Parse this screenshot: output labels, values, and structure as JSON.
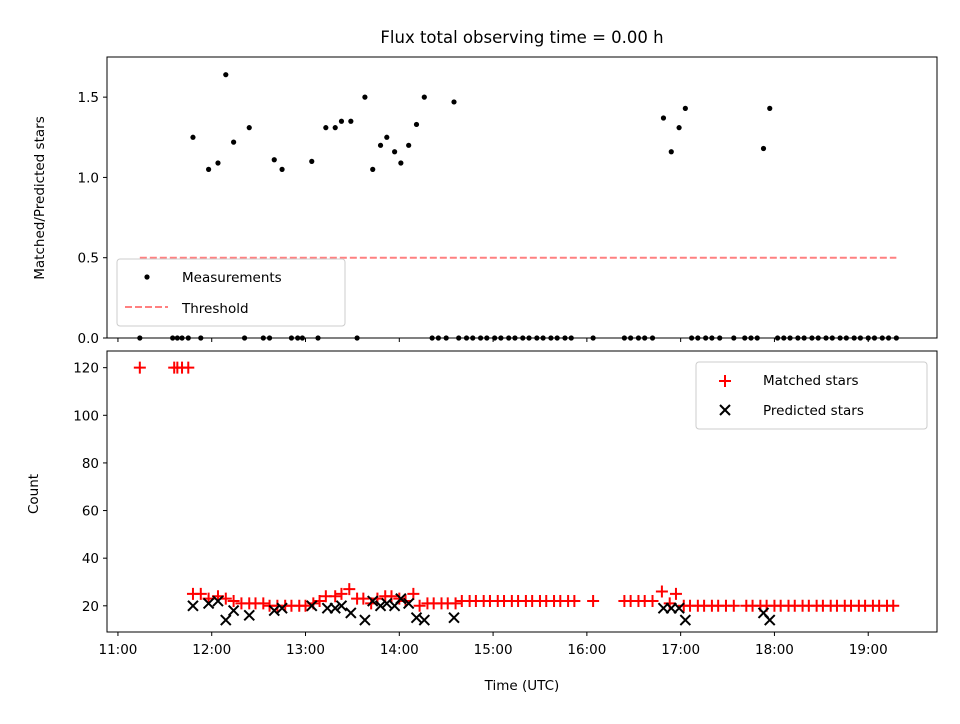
{
  "chart_data": [
    {
      "type": "scatter",
      "title": "Flux total observing time = 0.00 h",
      "ylabel": "Matched/Predicted stars",
      "xlabel": "",
      "xlim": [
        "10:53",
        "19:44"
      ],
      "ylim": [
        0,
        1.75
      ],
      "yticks": [
        0.0,
        0.5,
        1.0,
        1.5
      ],
      "ytick_labels": [
        "0.0",
        "0.5",
        "1.0",
        "1.5"
      ],
      "grid": false,
      "legend_position": "lower-left",
      "series": [
        {
          "name": "Measurements",
          "marker": "dot",
          "color": "#000000",
          "points": [
            [
              "11:48",
              1.25
            ],
            [
              "11:58",
              1.05
            ],
            [
              "12:04",
              1.09
            ],
            [
              "12:09",
              1.64
            ],
            [
              "12:14",
              1.22
            ],
            [
              "12:24",
              1.31
            ],
            [
              "12:40",
              1.11
            ],
            [
              "12:45",
              1.05
            ],
            [
              "13:04",
              1.1
            ],
            [
              "13:13",
              1.31
            ],
            [
              "13:19",
              1.31
            ],
            [
              "13:23",
              1.35
            ],
            [
              "13:29",
              1.35
            ],
            [
              "13:38",
              1.5
            ],
            [
              "13:43",
              1.05
            ],
            [
              "13:48",
              1.2
            ],
            [
              "13:52",
              1.25
            ],
            [
              "13:57",
              1.16
            ],
            [
              "14:01",
              1.09
            ],
            [
              "14:06",
              1.2
            ],
            [
              "14:11",
              1.33
            ],
            [
              "14:16",
              1.5
            ],
            [
              "14:35",
              1.47
            ],
            [
              "16:49",
              1.37
            ],
            [
              "16:54",
              1.16
            ],
            [
              "16:59",
              1.31
            ],
            [
              "17:03",
              1.43
            ],
            [
              "17:53",
              1.18
            ],
            [
              "17:57",
              1.43
            ],
            [
              "11:14",
              0
            ],
            [
              "11:35",
              0
            ],
            [
              "11:38",
              0
            ],
            [
              "11:41",
              0
            ],
            [
              "11:45",
              0
            ],
            [
              "11:53",
              0
            ],
            [
              "12:21",
              0
            ],
            [
              "12:33",
              0
            ],
            [
              "12:37",
              0
            ],
            [
              "12:51",
              0
            ],
            [
              "12:55",
              0
            ],
            [
              "12:58",
              0
            ],
            [
              "13:08",
              0
            ],
            [
              "13:33",
              0
            ],
            [
              "14:21",
              0
            ],
            [
              "14:25",
              0
            ],
            [
              "14:30",
              0
            ],
            [
              "14:38",
              0
            ],
            [
              "14:43",
              0
            ],
            [
              "14:47",
              0
            ],
            [
              "14:52",
              0
            ],
            [
              "14:56",
              0
            ],
            [
              "15:01",
              0
            ],
            [
              "15:05",
              0
            ],
            [
              "15:10",
              0
            ],
            [
              "15:14",
              0
            ],
            [
              "15:19",
              0
            ],
            [
              "15:23",
              0
            ],
            [
              "15:28",
              0
            ],
            [
              "15:32",
              0
            ],
            [
              "15:37",
              0
            ],
            [
              "15:41",
              0
            ],
            [
              "15:46",
              0
            ],
            [
              "15:50",
              0
            ],
            [
              "16:04",
              0
            ],
            [
              "16:24",
              0
            ],
            [
              "16:28",
              0
            ],
            [
              "16:33",
              0
            ],
            [
              "16:37",
              0
            ],
            [
              "16:42",
              0
            ],
            [
              "17:07",
              0
            ],
            [
              "17:11",
              0
            ],
            [
              "17:16",
              0
            ],
            [
              "17:20",
              0
            ],
            [
              "17:25",
              0
            ],
            [
              "17:34",
              0
            ],
            [
              "17:41",
              0
            ],
            [
              "17:45",
              0
            ],
            [
              "17:49",
              0
            ],
            [
              "18:02",
              0
            ],
            [
              "18:06",
              0
            ],
            [
              "18:10",
              0
            ],
            [
              "18:15",
              0
            ],
            [
              "18:19",
              0
            ],
            [
              "18:24",
              0
            ],
            [
              "18:28",
              0
            ],
            [
              "18:33",
              0
            ],
            [
              "18:37",
              0
            ],
            [
              "18:42",
              0
            ],
            [
              "18:46",
              0
            ],
            [
              "18:51",
              0
            ],
            [
              "18:55",
              0
            ],
            [
              "19:00",
              0
            ],
            [
              "19:04",
              0
            ],
            [
              "19:09",
              0
            ],
            [
              "19:13",
              0
            ],
            [
              "19:18",
              0
            ]
          ]
        },
        {
          "name": "Threshold",
          "style": "dashed-line",
          "color": "#ff8080",
          "points": [
            [
              "11:14",
              0.5
            ],
            [
              "19:18",
              0.5
            ]
          ]
        }
      ]
    },
    {
      "type": "scatter",
      "title": "",
      "ylabel": "Count",
      "xlabel": "Time (UTC)",
      "xlim": [
        "10:53",
        "19:44"
      ],
      "ylim": [
        9,
        127
      ],
      "yticks": [
        20,
        40,
        60,
        80,
        100,
        120
      ],
      "ytick_labels": [
        "20",
        "40",
        "60",
        "80",
        "100",
        "120"
      ],
      "xticks": [
        "11:00",
        "12:00",
        "13:00",
        "14:00",
        "15:00",
        "16:00",
        "17:00",
        "18:00",
        "19:00"
      ],
      "grid": false,
      "legend_position": "upper-right",
      "series": [
        {
          "name": "Matched stars",
          "marker": "plus",
          "color": "#ff0000",
          "points": [
            [
              "11:14",
              120
            ],
            [
              "11:36",
              120
            ],
            [
              "11:38",
              120
            ],
            [
              "11:41",
              120
            ],
            [
              "11:45",
              120
            ],
            [
              "11:48",
              25
            ],
            [
              "11:53",
              25
            ],
            [
              "11:58",
              23
            ],
            [
              "12:04",
              24
            ],
            [
              "12:09",
              23
            ],
            [
              "12:14",
              22
            ],
            [
              "12:19",
              21
            ],
            [
              "12:24",
              21
            ],
            [
              "12:28",
              21
            ],
            [
              "12:33",
              21
            ],
            [
              "12:37",
              20
            ],
            [
              "12:42",
              20
            ],
            [
              "12:47",
              20
            ],
            [
              "12:51",
              20
            ],
            [
              "12:56",
              20
            ],
            [
              "13:00",
              20
            ],
            [
              "13:05",
              21
            ],
            [
              "13:09",
              22
            ],
            [
              "13:13",
              24
            ],
            [
              "13:19",
              24
            ],
            [
              "13:23",
              25
            ],
            [
              "13:28",
              27
            ],
            [
              "13:33",
              23
            ],
            [
              "13:37",
              23
            ],
            [
              "13:42",
              21
            ],
            [
              "13:46",
              23
            ],
            [
              "13:51",
              24
            ],
            [
              "13:55",
              24
            ],
            [
              "14:00",
              23
            ],
            [
              "14:04",
              22
            ],
            [
              "14:09",
              25
            ],
            [
              "14:13",
              20
            ],
            [
              "14:18",
              21
            ],
            [
              "14:22",
              21
            ],
            [
              "14:27",
              21
            ],
            [
              "14:31",
              21
            ],
            [
              "14:36",
              21
            ],
            [
              "14:40",
              22
            ],
            [
              "14:45",
              22
            ],
            [
              "14:49",
              22
            ],
            [
              "14:54",
              22
            ],
            [
              "14:58",
              22
            ],
            [
              "15:03",
              22
            ],
            [
              "15:07",
              22
            ],
            [
              "15:12",
              22
            ],
            [
              "15:16",
              22
            ],
            [
              "15:21",
              22
            ],
            [
              "15:25",
              22
            ],
            [
              "15:30",
              22
            ],
            [
              "15:34",
              22
            ],
            [
              "15:39",
              22
            ],
            [
              "15:43",
              22
            ],
            [
              "15:48",
              22
            ],
            [
              "15:52",
              22
            ],
            [
              "16:04",
              22
            ],
            [
              "16:24",
              22
            ],
            [
              "16:28",
              22
            ],
            [
              "16:33",
              22
            ],
            [
              "16:37",
              22
            ],
            [
              "16:42",
              22
            ],
            [
              "16:48",
              26
            ],
            [
              "16:53",
              21
            ],
            [
              "16:57",
              25
            ],
            [
              "17:02",
              20
            ],
            [
              "17:06",
              20
            ],
            [
              "17:11",
              20
            ],
            [
              "17:15",
              20
            ],
            [
              "17:20",
              20
            ],
            [
              "17:24",
              20
            ],
            [
              "17:29",
              20
            ],
            [
              "17:34",
              20
            ],
            [
              "17:42",
              20
            ],
            [
              "17:46",
              20
            ],
            [
              "17:51",
              20
            ],
            [
              "17:55",
              20
            ],
            [
              "18:00",
              20
            ],
            [
              "18:04",
              20
            ],
            [
              "18:09",
              20
            ],
            [
              "18:13",
              20
            ],
            [
              "18:18",
              20
            ],
            [
              "18:22",
              20
            ],
            [
              "18:27",
              20
            ],
            [
              "18:31",
              20
            ],
            [
              "18:36",
              20
            ],
            [
              "18:40",
              20
            ],
            [
              "18:45",
              20
            ],
            [
              "18:49",
              20
            ],
            [
              "18:54",
              20
            ],
            [
              "18:58",
              20
            ],
            [
              "19:03",
              20
            ],
            [
              "19:07",
              20
            ],
            [
              "19:12",
              20
            ],
            [
              "19:16",
              20
            ]
          ]
        },
        {
          "name": "Predicted stars",
          "marker": "x",
          "color": "#000000",
          "points": [
            [
              "11:48",
              20
            ],
            [
              "11:58",
              21
            ],
            [
              "12:04",
              22
            ],
            [
              "12:09",
              14
            ],
            [
              "12:14",
              18
            ],
            [
              "12:24",
              16
            ],
            [
              "12:40",
              18
            ],
            [
              "12:45",
              19
            ],
            [
              "13:04",
              20
            ],
            [
              "13:14",
              19
            ],
            [
              "13:19",
              19
            ],
            [
              "13:23",
              20
            ],
            [
              "13:29",
              17
            ],
            [
              "13:38",
              14
            ],
            [
              "13:43",
              22
            ],
            [
              "13:48",
              20
            ],
            [
              "13:52",
              21
            ],
            [
              "13:57",
              20
            ],
            [
              "14:01",
              23
            ],
            [
              "14:06",
              21
            ],
            [
              "14:11",
              15
            ],
            [
              "14:16",
              14
            ],
            [
              "14:35",
              15
            ],
            [
              "16:49",
              19
            ],
            [
              "16:54",
              19
            ],
            [
              "16:59",
              19
            ],
            [
              "17:03",
              14
            ],
            [
              "17:53",
              17
            ],
            [
              "17:57",
              14
            ]
          ]
        }
      ]
    }
  ]
}
